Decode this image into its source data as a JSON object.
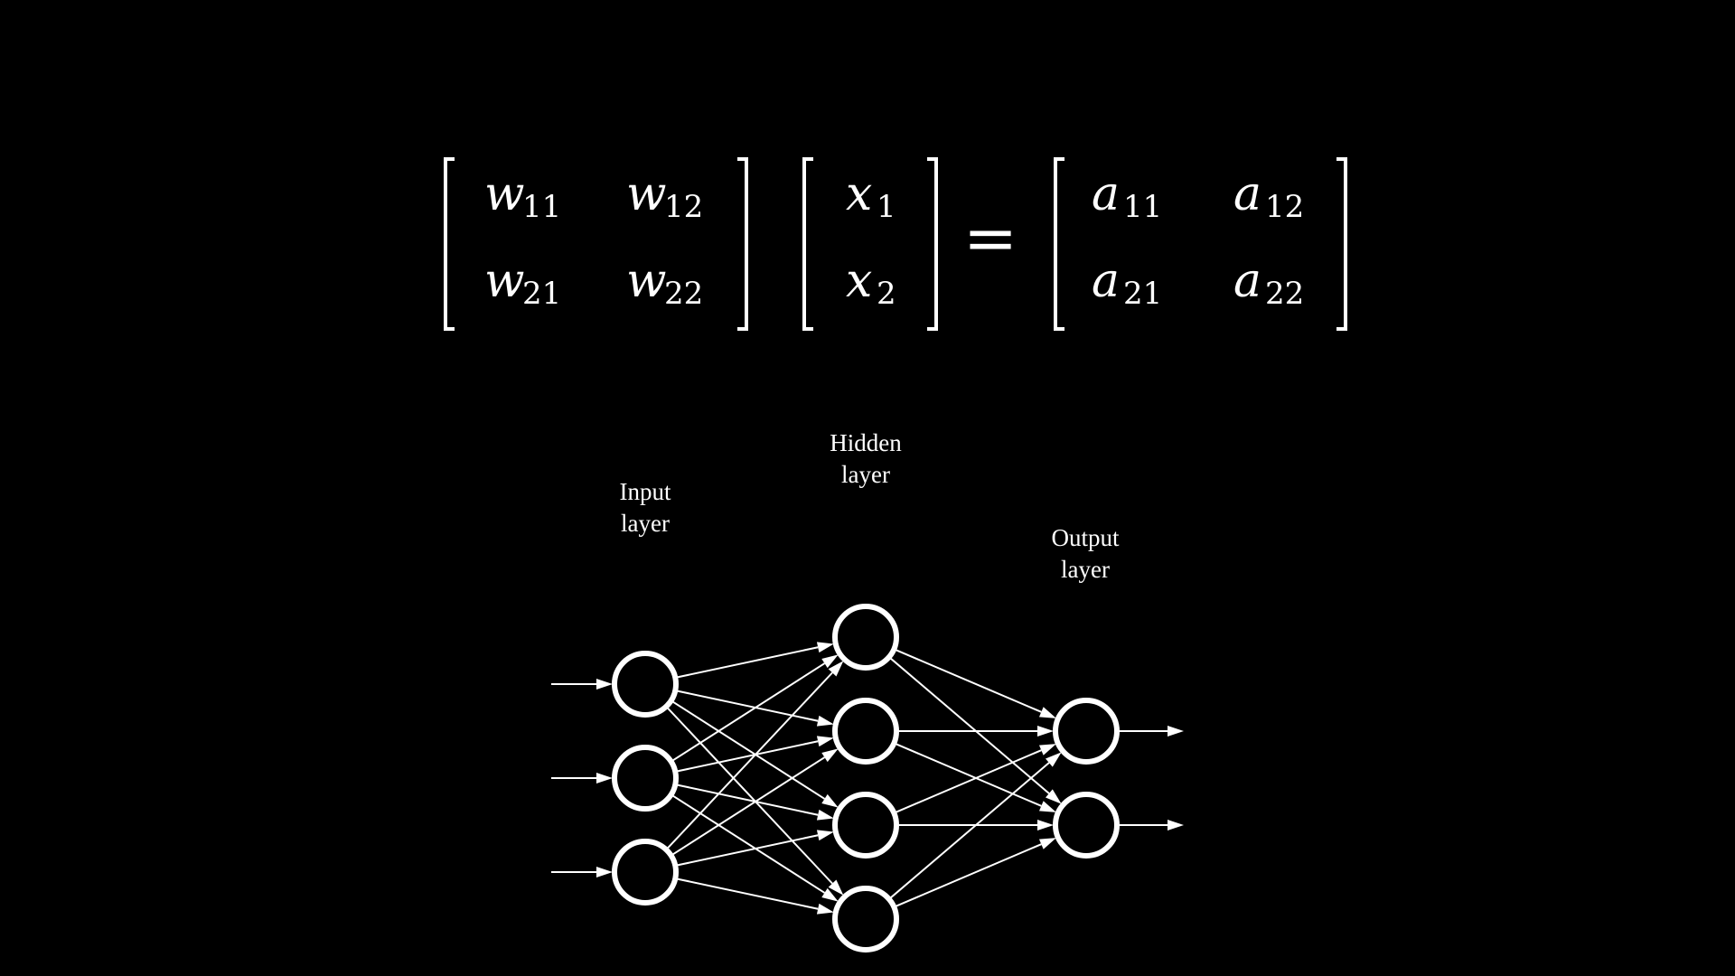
{
  "equation": {
    "weight_matrix": {
      "symbol": "w",
      "cells": [
        {
          "symbol": "w",
          "sub": "11"
        },
        {
          "symbol": "w",
          "sub": "12"
        },
        {
          "symbol": "w",
          "sub": "21"
        },
        {
          "symbol": "w",
          "sub": "22"
        }
      ]
    },
    "input_vector": {
      "cells": [
        {
          "symbol": "x",
          "sub": "1"
        },
        {
          "symbol": "x",
          "sub": "2"
        }
      ]
    },
    "equals_sign": "=",
    "result_matrix": {
      "cells": [
        {
          "symbol": "a",
          "sub": "11"
        },
        {
          "symbol": "a",
          "sub": "12"
        },
        {
          "symbol": "a",
          "sub": "21"
        },
        {
          "symbol": "a",
          "sub": "22"
        }
      ]
    }
  },
  "network": {
    "layers": [
      {
        "name": "input",
        "label_line1": "Input",
        "label_line2": "layer",
        "node_count": 3
      },
      {
        "name": "hidden",
        "label_line1": "Hidden",
        "label_line2": "layer",
        "node_count": 4
      },
      {
        "name": "output",
        "label_line1": "Output",
        "label_line2": "layer",
        "node_count": 2
      }
    ],
    "fully_connected": true,
    "has_input_arrows": true,
    "has_output_arrows": true
  },
  "colors": {
    "background": "#000000",
    "foreground": "#ffffff"
  }
}
